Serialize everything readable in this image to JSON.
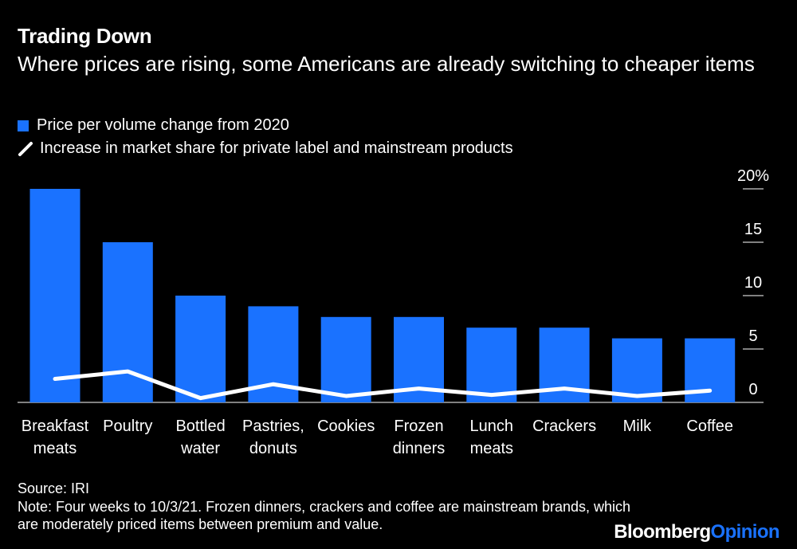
{
  "header": {
    "title": "Trading Down",
    "subtitle": "Where prices are rising, some Americans are already switching to cheaper items"
  },
  "legend": {
    "bar_label": "Price per volume change from 2020",
    "line_label": "Increase in market share for private label and mainstream products"
  },
  "chart_data": {
    "type": "bar",
    "categories": [
      [
        "Breakfast",
        "meats"
      ],
      [
        "Poultry"
      ],
      [
        "Bottled",
        "water"
      ],
      [
        "Pastries,",
        "donuts"
      ],
      [
        "Cookies"
      ],
      [
        "Frozen",
        "dinners"
      ],
      [
        "Lunch",
        "meats"
      ],
      [
        "Crackers"
      ],
      [
        "Milk"
      ],
      [
        "Coffee"
      ]
    ],
    "series": [
      {
        "name": "Price per volume change from 2020",
        "type": "bar",
        "color": "#1a72ff",
        "values": [
          20,
          15,
          10,
          9,
          8,
          8,
          7,
          7,
          6,
          6
        ]
      },
      {
        "name": "Increase in market share for private label and mainstream products",
        "type": "line",
        "color": "#ffffff",
        "values": [
          2.2,
          2.9,
          0.4,
          1.7,
          0.6,
          1.3,
          0.7,
          1.3,
          0.6,
          1.1
        ]
      }
    ],
    "yticks": [
      "20%",
      "15",
      "10",
      "5",
      "0"
    ],
    "ytick_values": [
      20,
      15,
      10,
      5,
      0
    ],
    "ylim": [
      0,
      20
    ]
  },
  "footer": {
    "source": "Source: IRI",
    "note": "Note: Four weeks to 10/3/21. Frozen dinners, crackers and coffee are mainstream brands, which are moderately priced items between premium and value.",
    "brand_a": "Bloomberg",
    "brand_b": "Opinion"
  }
}
